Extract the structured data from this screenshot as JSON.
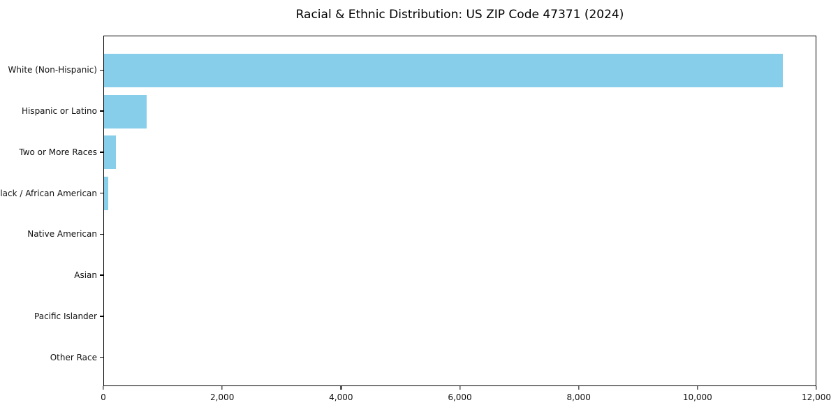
{
  "chart_data": {
    "type": "bar",
    "orientation": "horizontal",
    "title": "Racial & Ethnic Distribution: US ZIP Code 47371 (2024)",
    "categories": [
      "White (Non-Hispanic)",
      "Hispanic or Latino",
      "Two or More Races",
      "Black / African American",
      "Native American",
      "Asian",
      "Pacific Islander",
      "Other Race"
    ],
    "values": [
      11450,
      715,
      205,
      65,
      0,
      0,
      0,
      0
    ],
    "xlabel": "",
    "ylabel": "",
    "xlim": [
      0,
      12000
    ],
    "x_ticks": [
      0,
      2000,
      4000,
      6000,
      8000,
      10000,
      12000
    ],
    "x_tick_labels": [
      "0",
      "2,000",
      "4,000",
      "6,000",
      "8,000",
      "10,000",
      "12,000"
    ],
    "bar_color": "#87CEEB",
    "axis_color": "#000000",
    "grid": false,
    "legend_position": "none"
  }
}
